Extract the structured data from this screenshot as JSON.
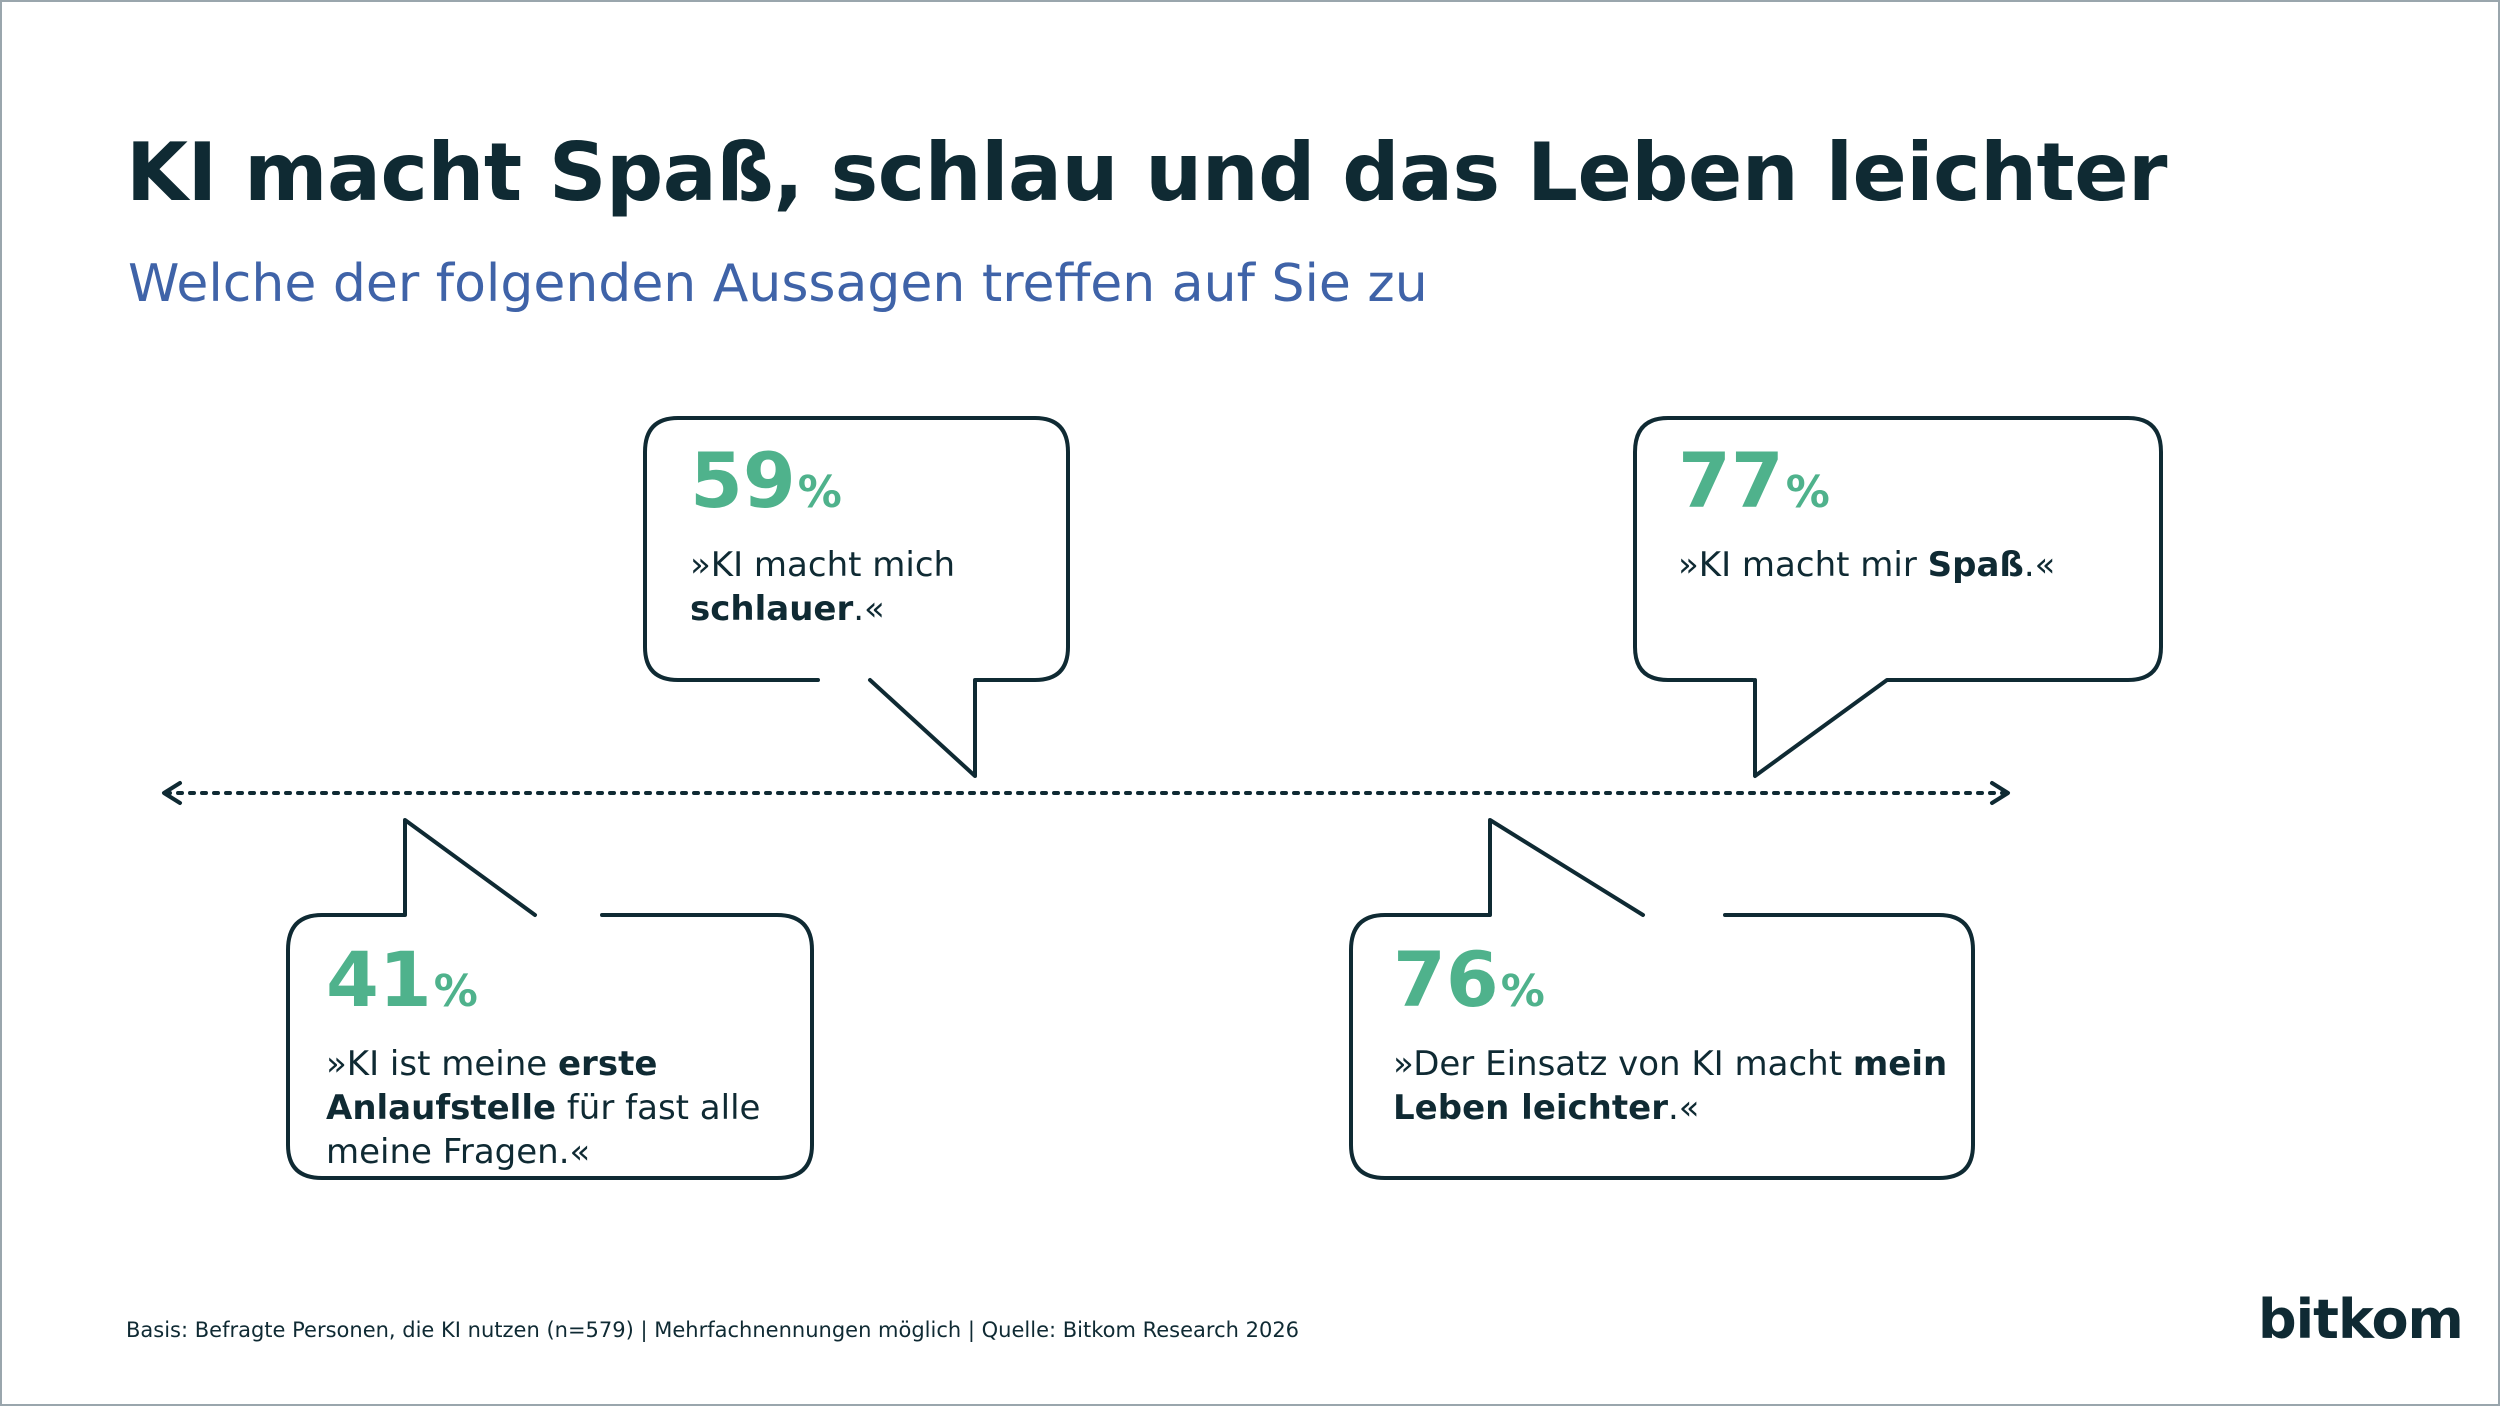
{
  "header": {
    "title": "KI macht Spaß, schlau und das Leben leichter",
    "subtitle": "Welche der folgenden Aussagen treffen auf Sie zu"
  },
  "chart_data": {
    "type": "table",
    "unit": "%",
    "items": [
      {
        "value": 59,
        "value_label": "59",
        "unit_label": "%",
        "quote_lines": [
          [
            {
              "t": "»KI macht mich",
              "b": false
            }
          ],
          [
            {
              "t": "schlauer",
              "b": true
            },
            {
              "t": ".«",
              "b": false
            }
          ]
        ]
      },
      {
        "value": 77,
        "value_label": "77",
        "unit_label": "%",
        "quote_lines": [
          [
            {
              "t": "»KI macht mir ",
              "b": false
            },
            {
              "t": "Spaß",
              "b": true
            },
            {
              "t": ".«",
              "b": false
            }
          ]
        ]
      },
      {
        "value": 41,
        "value_label": "41",
        "unit_label": "%",
        "quote_lines": [
          [
            {
              "t": "»KI ist meine ",
              "b": false
            },
            {
              "t": "erste",
              "b": true
            }
          ],
          [
            {
              "t": "Anlaufstelle",
              "b": true
            },
            {
              "t": " für fast alle",
              "b": false
            }
          ],
          [
            {
              "t": "meine Fragen.«",
              "b": false
            }
          ]
        ]
      },
      {
        "value": 76,
        "value_label": "76",
        "unit_label": "%",
        "quote_lines": [
          [
            {
              "t": "»Der Einsatz von KI macht ",
              "b": false
            },
            {
              "t": "mein",
              "b": true
            }
          ],
          [
            {
              "t": "Leben leichter",
              "b": true
            },
            {
              "t": ".«",
              "b": false
            }
          ]
        ]
      }
    ]
  },
  "footer": {
    "note": "Basis: Befragte Personen, die KI nutzen (n=579) | Mehrfachnennungen möglich | Quelle: Bitkom Research 2026",
    "logo": "bitkom"
  },
  "colors": {
    "navy": "#0f2a33",
    "accent_green": "#4fb28c",
    "subtitle_blue": "#3f63a8"
  }
}
